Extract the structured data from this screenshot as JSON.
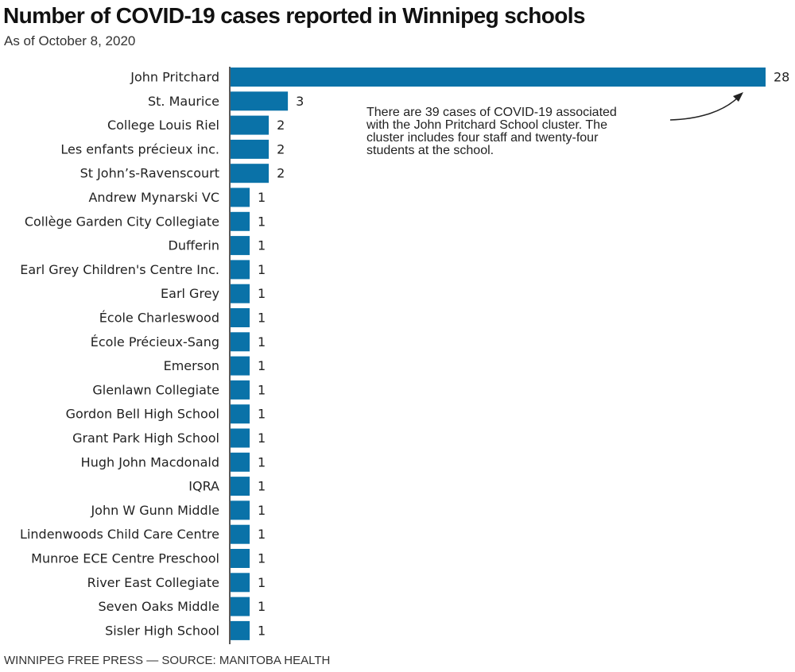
{
  "header": {
    "title": "Number of COVID-19 cases reported in Winnipeg schools",
    "subtitle": "As of October 8, 2020"
  },
  "footer": {
    "credit": "WINNIPEG FREE PRESS — SOURCE: MANITOBA HEALTH"
  },
  "annotation": {
    "lines": [
      "There are 39 cases of COVID-19 associated",
      "with the John Pritchard School cluster. The",
      "cluster includes four staff and twenty-four",
      "students at the school."
    ]
  },
  "colors": {
    "bar": "#0a72a8",
    "axis": "#222222",
    "text": "#222222"
  },
  "chart_data": {
    "type": "bar",
    "orientation": "horizontal",
    "title": "Number of COVID-19 cases reported in Winnipeg schools",
    "subtitle": "As of October 8, 2020",
    "categories": [
      "John Pritchard",
      "St. Maurice",
      "College Louis Riel",
      "Les enfants précieux inc.",
      "St John’s-Ravenscourt",
      "Andrew Mynarski VC",
      "Collège Garden City Collegiate",
      "Dufferin",
      "Earl Grey Children's Centre Inc.",
      "Earl Grey",
      "École Charleswood",
      "École Précieux-Sang",
      "Emerson",
      "Glenlawn Collegiate",
      "Gordon Bell High School",
      "Grant Park High School",
      "Hugh John Macdonald",
      "IQRA",
      "John W Gunn Middle",
      "Lindenwoods Child Care Centre",
      "Munroe ECE Centre Preschool",
      "River East Collegiate",
      "Seven Oaks Middle",
      "Sisler High School"
    ],
    "values": [
      28,
      3,
      2,
      2,
      2,
      1,
      1,
      1,
      1,
      1,
      1,
      1,
      1,
      1,
      1,
      1,
      1,
      1,
      1,
      1,
      1,
      1,
      1,
      1
    ],
    "xlim": [
      0,
      28
    ],
    "grid": false,
    "legend": "none",
    "data_labels": true
  }
}
